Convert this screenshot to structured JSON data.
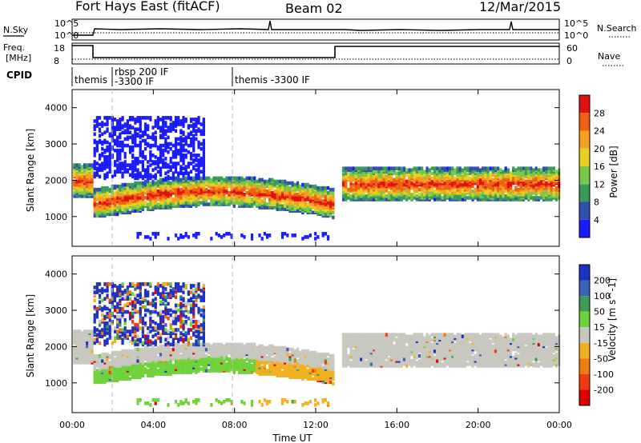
{
  "header": {
    "title": "Fort Hays East (fitACF)",
    "beam": "Beam 02",
    "date": "12/Mar/2015"
  },
  "status_panels": {
    "nsky_label": "N.Sky",
    "nsearch_label": "N.Search",
    "freq_label_1": "Freq.",
    "freq_label_2": "[MHz]",
    "nave_label": "Nave",
    "cpid_label": "CPID",
    "noise_left_top": "10^5",
    "noise_left_bottom": "10^0",
    "noise_right_top": "10^5",
    "noise_right_bottom": "10^0",
    "freq_top": "18",
    "freq_bottom": "8",
    "nave_top": "60",
    "nave_bottom": "0"
  },
  "cpid_segments": [
    {
      "label": "themis",
      "start_hr": 0.0
    },
    {
      "label": "rbsp 200 IF",
      "start_hr": 2.0
    },
    {
      "label": "-3300 IF",
      "start_hr": 2.0
    },
    {
      "label": "themis -3300 IF",
      "start_hr": 7.8
    }
  ],
  "axes": {
    "ylabel": "Slant Range [km]",
    "xlabel": "Time UT",
    "y_ticks": [
      "1000",
      "2000",
      "3000",
      "4000"
    ],
    "x_ticks": [
      "00:00",
      "04:00",
      "08:00",
      "12:00",
      "16:00",
      "20:00",
      "00:00"
    ]
  },
  "chart_data": [
    {
      "type": "heatmap",
      "title": "",
      "xlabel": "",
      "ylabel": "Slant Range [km]",
      "xlim": [
        0,
        24
      ],
      "ylim": [
        180,
        4500
      ],
      "colorbar": {
        "label": "Power [dB]",
        "ticks": [
          "4",
          "8",
          "12",
          "16",
          "20",
          "24",
          "28"
        ],
        "colors": [
          "#1a1aff",
          "#2f50b0",
          "#3a9a5a",
          "#7ac84a",
          "#e8d020",
          "#f5a020",
          "#f06010",
          "#e01010"
        ]
      }
    },
    {
      "type": "heatmap",
      "title": "",
      "xlabel": "Time UT",
      "ylabel": "Slant Range [km]",
      "xlim": [
        0,
        24
      ],
      "ylim": [
        180,
        4500
      ],
      "colorbar": {
        "label": "Velocity [m s^-1]",
        "ticks": [
          "200",
          "100",
          "50",
          "15",
          "-15",
          "-50",
          "-100",
          "-200"
        ],
        "colors": [
          "#2030c0",
          "#3a62b8",
          "#3f9a5a",
          "#6fd23a",
          "#c8c8c0",
          "#f0b020",
          "#f07a10",
          "#f03a10",
          "#e00000"
        ]
      }
    }
  ]
}
